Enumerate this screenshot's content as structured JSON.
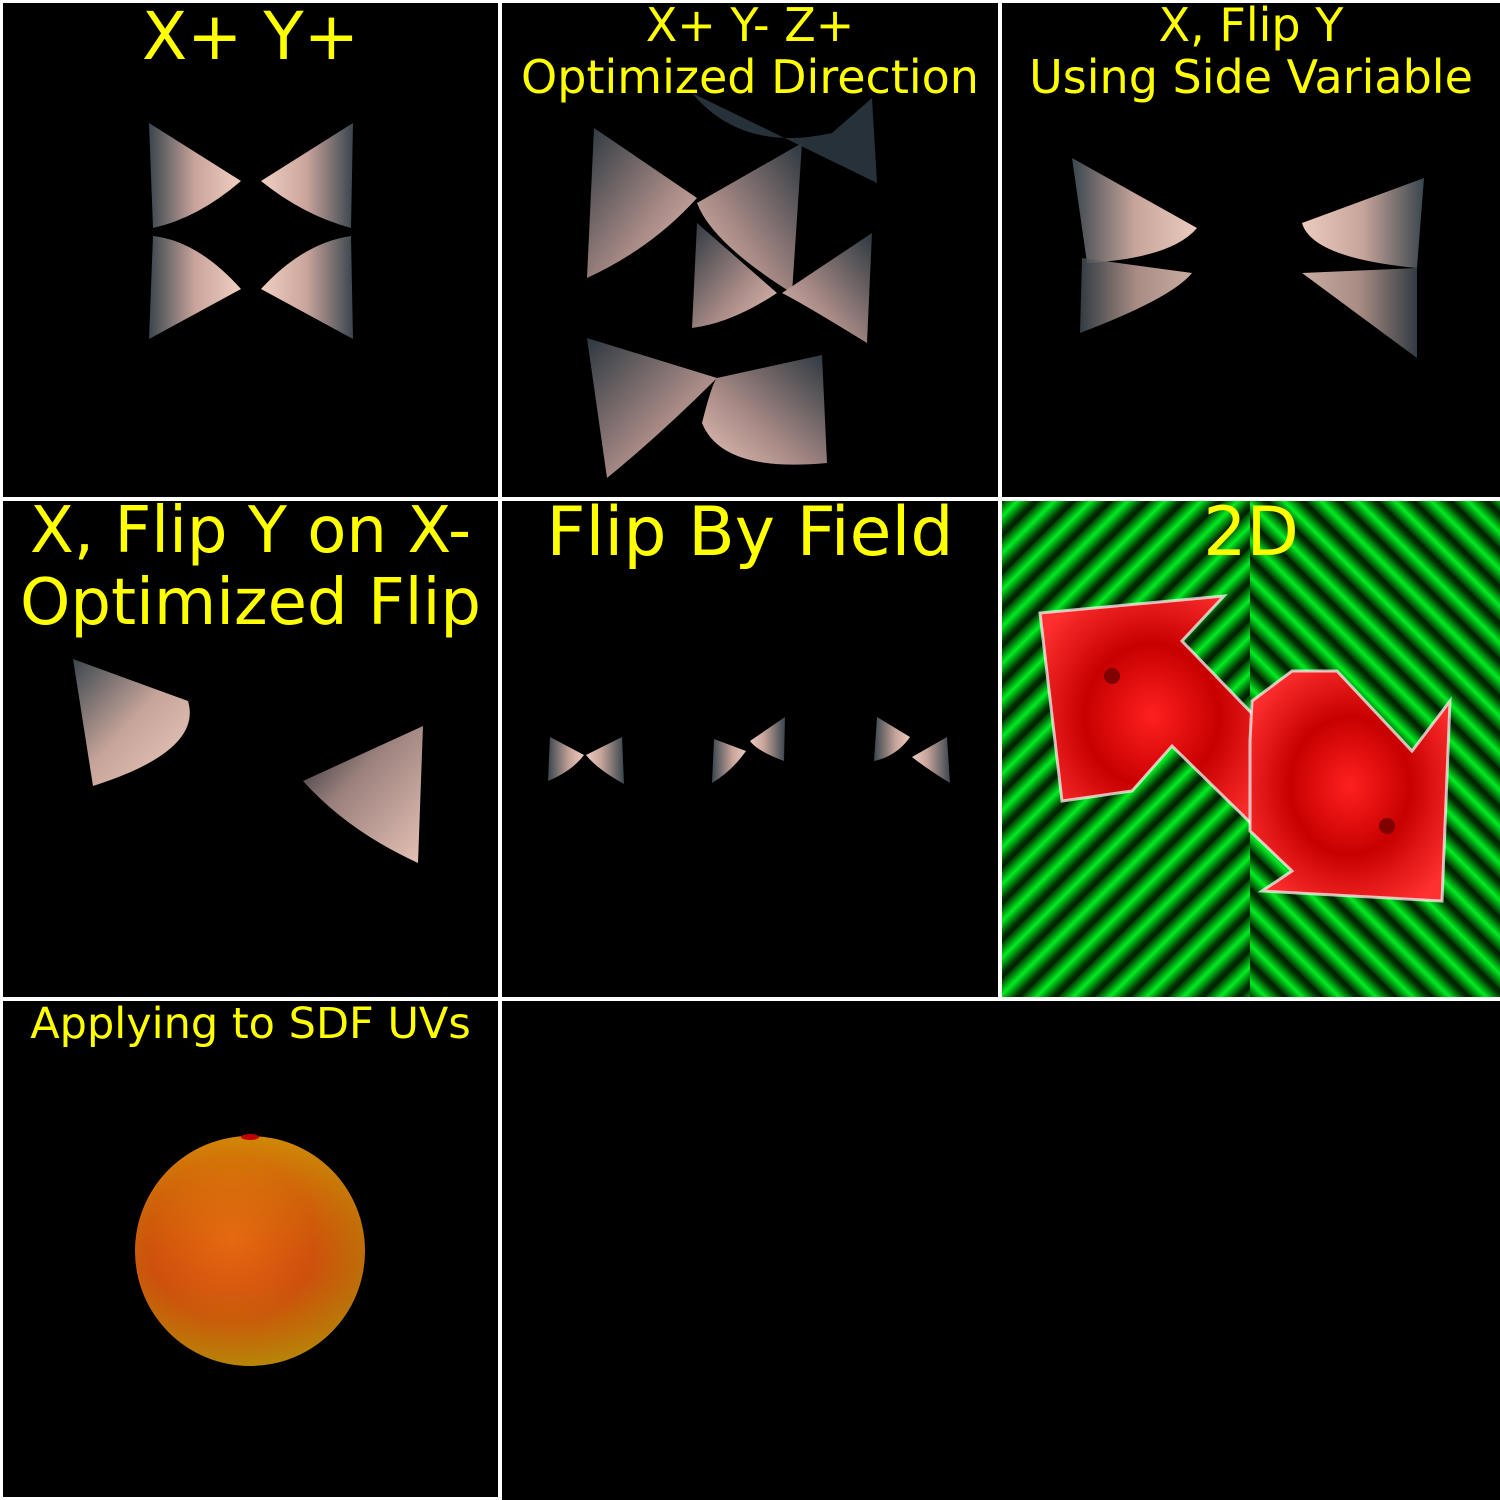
{
  "panels": [
    {
      "id": "x-pos-y-pos",
      "lines": [
        "X+ Y+"
      ]
    },
    {
      "id": "optimized-direction",
      "lines": [
        "X+ Y- Z+",
        "Optimized Direction"
      ]
    },
    {
      "id": "side-variable",
      "lines": [
        "X, Flip Y",
        "Using Side Variable"
      ]
    },
    {
      "id": "optimized-flip",
      "lines": [
        "X, Flip Y on X-",
        "Optimized Flip"
      ]
    },
    {
      "id": "flip-by-field",
      "lines": [
        "Flip By Field"
      ]
    },
    {
      "id": "two-d",
      "lines": [
        "2D"
      ]
    },
    {
      "id": "sdf-uvs",
      "lines": [
        "Applying to SDF UVs"
      ]
    }
  ],
  "colors": {
    "title": "#ffff00",
    "background": "#000000",
    "divider": "#ffffff",
    "cone_light": "#e8c4b8",
    "cone_dark": "#2a3640",
    "arrow_red": "#ff1010",
    "stripe_green": "#00ee22",
    "sphere_orange": "#e07010"
  }
}
